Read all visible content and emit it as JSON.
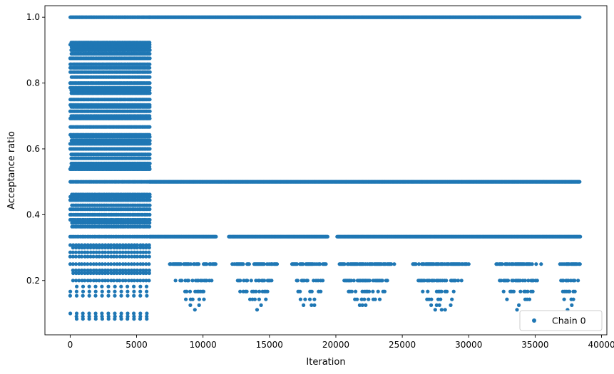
{
  "chart_data": {
    "type": "scatter",
    "title": "",
    "xlabel": "Iteration",
    "ylabel": "Acceptance ratio",
    "xlim": [
      -1900,
      40400
    ],
    "ylim": [
      0.035,
      1.035
    ],
    "xticks": [
      0,
      5000,
      10000,
      15000,
      20000,
      25000,
      30000,
      35000,
      40000
    ],
    "yticks": [
      0.2,
      0.4,
      0.6,
      0.8,
      1.0
    ],
    "grid": false,
    "legend_position": "lower-right",
    "color": "#1f77b4",
    "series": [
      {
        "name": "Chain 0",
        "marker": "circle",
        "total_iterations": 38400,
        "transition_iteration": 6000,
        "phase1_levels": [
          1.0,
          0.9231,
          0.9167,
          0.9091,
          0.9,
          0.8889,
          0.875,
          0.8571,
          0.8462,
          0.8333,
          0.8182,
          0.8,
          0.7857,
          0.7778,
          0.7692,
          0.75,
          0.7333,
          0.7273,
          0.7143,
          0.7,
          0.6923,
          0.6667,
          0.6429,
          0.6364,
          0.625,
          0.6154,
          0.6,
          0.5833,
          0.5714,
          0.5556,
          0.5455,
          0.5385,
          0.5,
          0.4615,
          0.4545,
          0.4444,
          0.4286,
          0.4167,
          0.4,
          0.3846,
          0.375,
          0.3636,
          0.3333,
          0.3077,
          0.3,
          0.2857,
          0.2727,
          0.25,
          0.2308,
          0.2222,
          0.2,
          0.1818,
          0.1667,
          0.1538,
          0.1,
          0.0909,
          0.0833
        ],
        "phase2_levels": [
          1.0,
          0.5,
          0.3333,
          0.25,
          0.2,
          0.1667,
          0.1429,
          0.125,
          0.1111
        ],
        "phase2_clusters": [
          [
            7500,
            11000
          ],
          [
            12200,
            15600
          ],
          [
            16700,
            19300
          ],
          [
            20200,
            24500
          ],
          [
            25800,
            30000
          ],
          [
            32000,
            35500
          ],
          [
            36800,
            38400
          ]
        ]
      }
    ]
  }
}
